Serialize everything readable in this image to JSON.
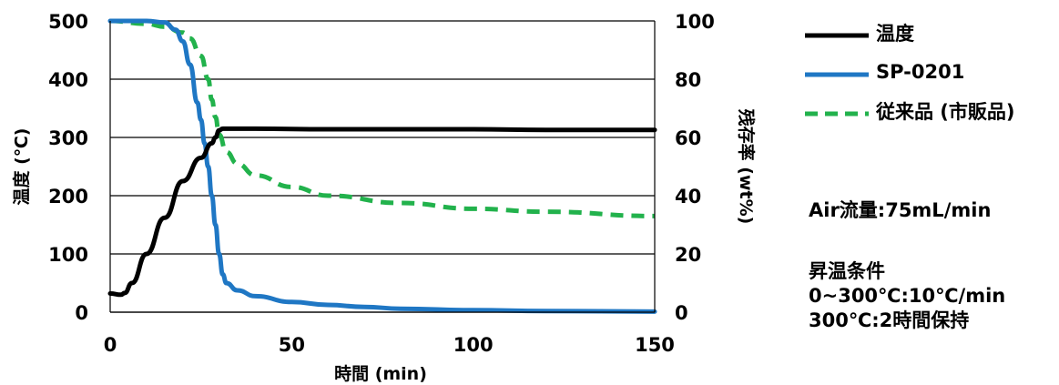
{
  "chart_data": {
    "type": "line",
    "xlabel": "時間 (min)",
    "ylabel_left": "温度 (℃)",
    "ylabel_right": "残存率 (wt%)",
    "x_ticks": [
      "0",
      "50",
      "100",
      "150"
    ],
    "y_left_ticks": [
      "0",
      "100",
      "200",
      "300",
      "400",
      "500"
    ],
    "y_right_ticks": [
      "0",
      "20",
      "40",
      "60",
      "80",
      "100"
    ],
    "xlim": [
      0,
      150
    ],
    "ylim_left": [
      0,
      500
    ],
    "ylim_right": [
      0,
      100
    ],
    "grid": "horizontal",
    "legend_position": "right",
    "series": [
      {
        "name": "温度",
        "axis": "left",
        "color": "#000000",
        "style": "solid",
        "x": [
          0,
          3,
          4,
          6,
          10,
          15,
          20,
          25,
          28,
          29,
          30,
          31,
          40,
          60,
          80,
          100,
          120,
          150
        ],
        "y": [
          32,
          30,
          33,
          50,
          100,
          162,
          225,
          265,
          290,
          300,
          312,
          315,
          315,
          314,
          314,
          314,
          313,
          313
        ]
      },
      {
        "name": "SP-0201",
        "axis": "right",
        "color": "#1f77c4",
        "style": "solid",
        "x": [
          0,
          10,
          15,
          18,
          20,
          22,
          24,
          25,
          26,
          27,
          28,
          29,
          30,
          31,
          32,
          35,
          40,
          50,
          60,
          70,
          80,
          100,
          120,
          150
        ],
        "y": [
          100,
          100,
          99.5,
          97,
          93,
          85,
          72,
          66,
          58,
          50,
          40,
          30,
          20,
          13,
          10,
          7.5,
          5.5,
          3.5,
          2.5,
          1.8,
          1.2,
          0.7,
          0.4,
          0.2
        ]
      },
      {
        "name": "従来品 (市販品)",
        "axis": "right",
        "color": "#22b24c",
        "style": "dashed",
        "x": [
          0,
          10,
          15,
          20,
          22,
          25,
          27,
          28,
          29,
          30,
          32,
          35,
          40,
          50,
          60,
          80,
          100,
          120,
          150
        ],
        "y": [
          100,
          99,
          98,
          96,
          94,
          88,
          80,
          73,
          67,
          61,
          55,
          51,
          47,
          43,
          40,
          37.5,
          35.5,
          34.5,
          33
        ]
      }
    ]
  },
  "notes": {
    "air_flow": "Air流量:75mL/min",
    "heating_title": "昇温条件",
    "heating_line1": "0~300℃:10℃/min",
    "heating_line2": "300℃:2時間保持"
  }
}
